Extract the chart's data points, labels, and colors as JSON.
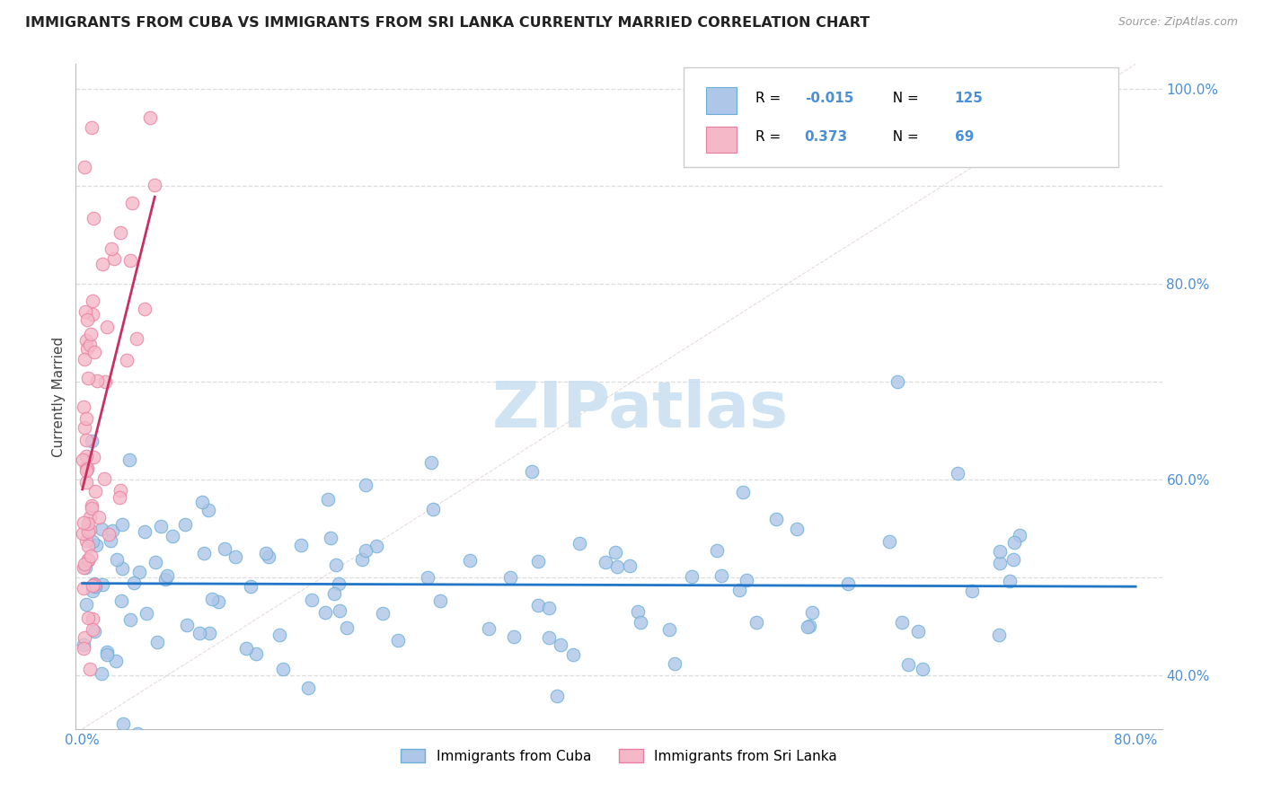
{
  "title": "IMMIGRANTS FROM CUBA VS IMMIGRANTS FROM SRI LANKA CURRENTLY MARRIED CORRELATION CHART",
  "source": "Source: ZipAtlas.com",
  "ylabel": "Currently Married",
  "xlim": [
    -0.005,
    0.82
  ],
  "ylim": [
    0.345,
    1.025
  ],
  "ytick_vals": [
    0.4,
    0.6,
    0.8,
    1.0
  ],
  "ytick_labels": [
    "40.0%",
    "60.0%",
    "80.0%",
    "100.0%"
  ],
  "xtick_vals": [
    0.0,
    0.8
  ],
  "xtick_labels": [
    "0.0%",
    "80.0%"
  ],
  "cuba_color": "#aec6e8",
  "cuba_edge": "#6baed6",
  "srilanka_color": "#f4b8c8",
  "srilanka_edge": "#e87ea1",
  "cuba_trend_color": "#2176c7",
  "srilanka_trend_color": "#c73060",
  "diag_color": "#dddddd",
  "grid_color": "#dddddd",
  "cuba_R": -0.015,
  "cuba_N": 125,
  "srilanka_R": 0.373,
  "srilanka_N": 69,
  "legend_label_cuba": "Immigrants from Cuba",
  "legend_label_srilanka": "Immigrants from Sri Lanka",
  "watermark": "ZIPatlas",
  "watermark_color": "#c8dff0",
  "title_color": "#222222",
  "label_color": "#4a90d9",
  "tick_color": "#4a90d9"
}
